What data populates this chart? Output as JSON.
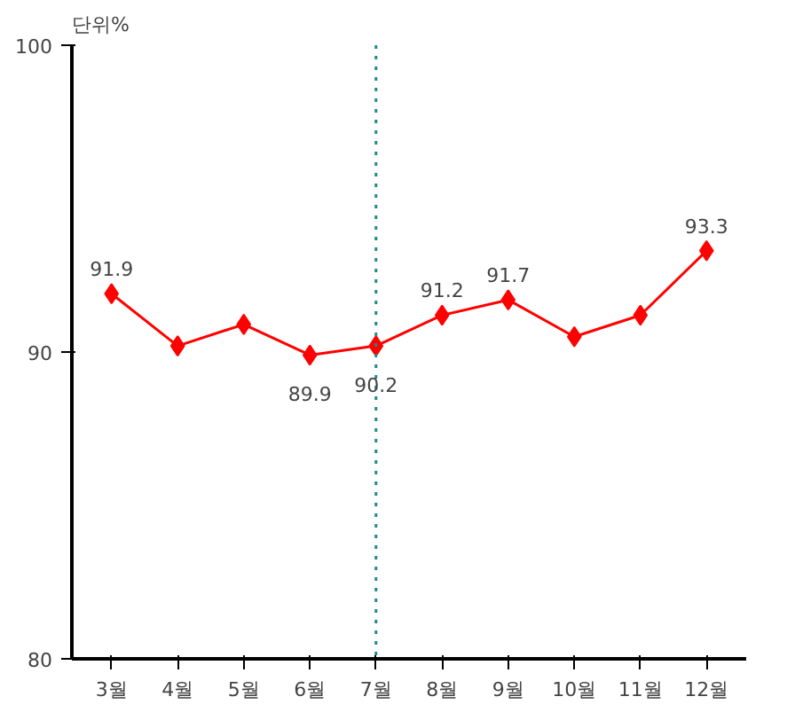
{
  "chart_data": {
    "type": "line",
    "title": "단위%",
    "categories": [
      "3월",
      "4월",
      "5월",
      "6월",
      "7월",
      "8월",
      "9월",
      "10월",
      "11월",
      "12월"
    ],
    "series": [
      {
        "color": "#ff0000",
        "values": [
          91.9,
          90.2,
          90.9,
          89.9,
          90.2,
          91.2,
          91.7,
          90.5,
          91.2,
          93.3
        ],
        "value_labels": [
          "91.9",
          null,
          null,
          "89.9",
          "90.2",
          "91.2",
          "91.7",
          null,
          null,
          "93.3"
        ]
      }
    ],
    "ylim": [
      80,
      100
    ],
    "yticks": [
      80,
      90,
      100
    ],
    "grid": false,
    "marker": "diamond",
    "line_style": "solid",
    "ref_lines": [
      {
        "axis": "x",
        "value": "7월",
        "color": "#1f8a8a",
        "line_style": "dotted"
      }
    ]
  }
}
